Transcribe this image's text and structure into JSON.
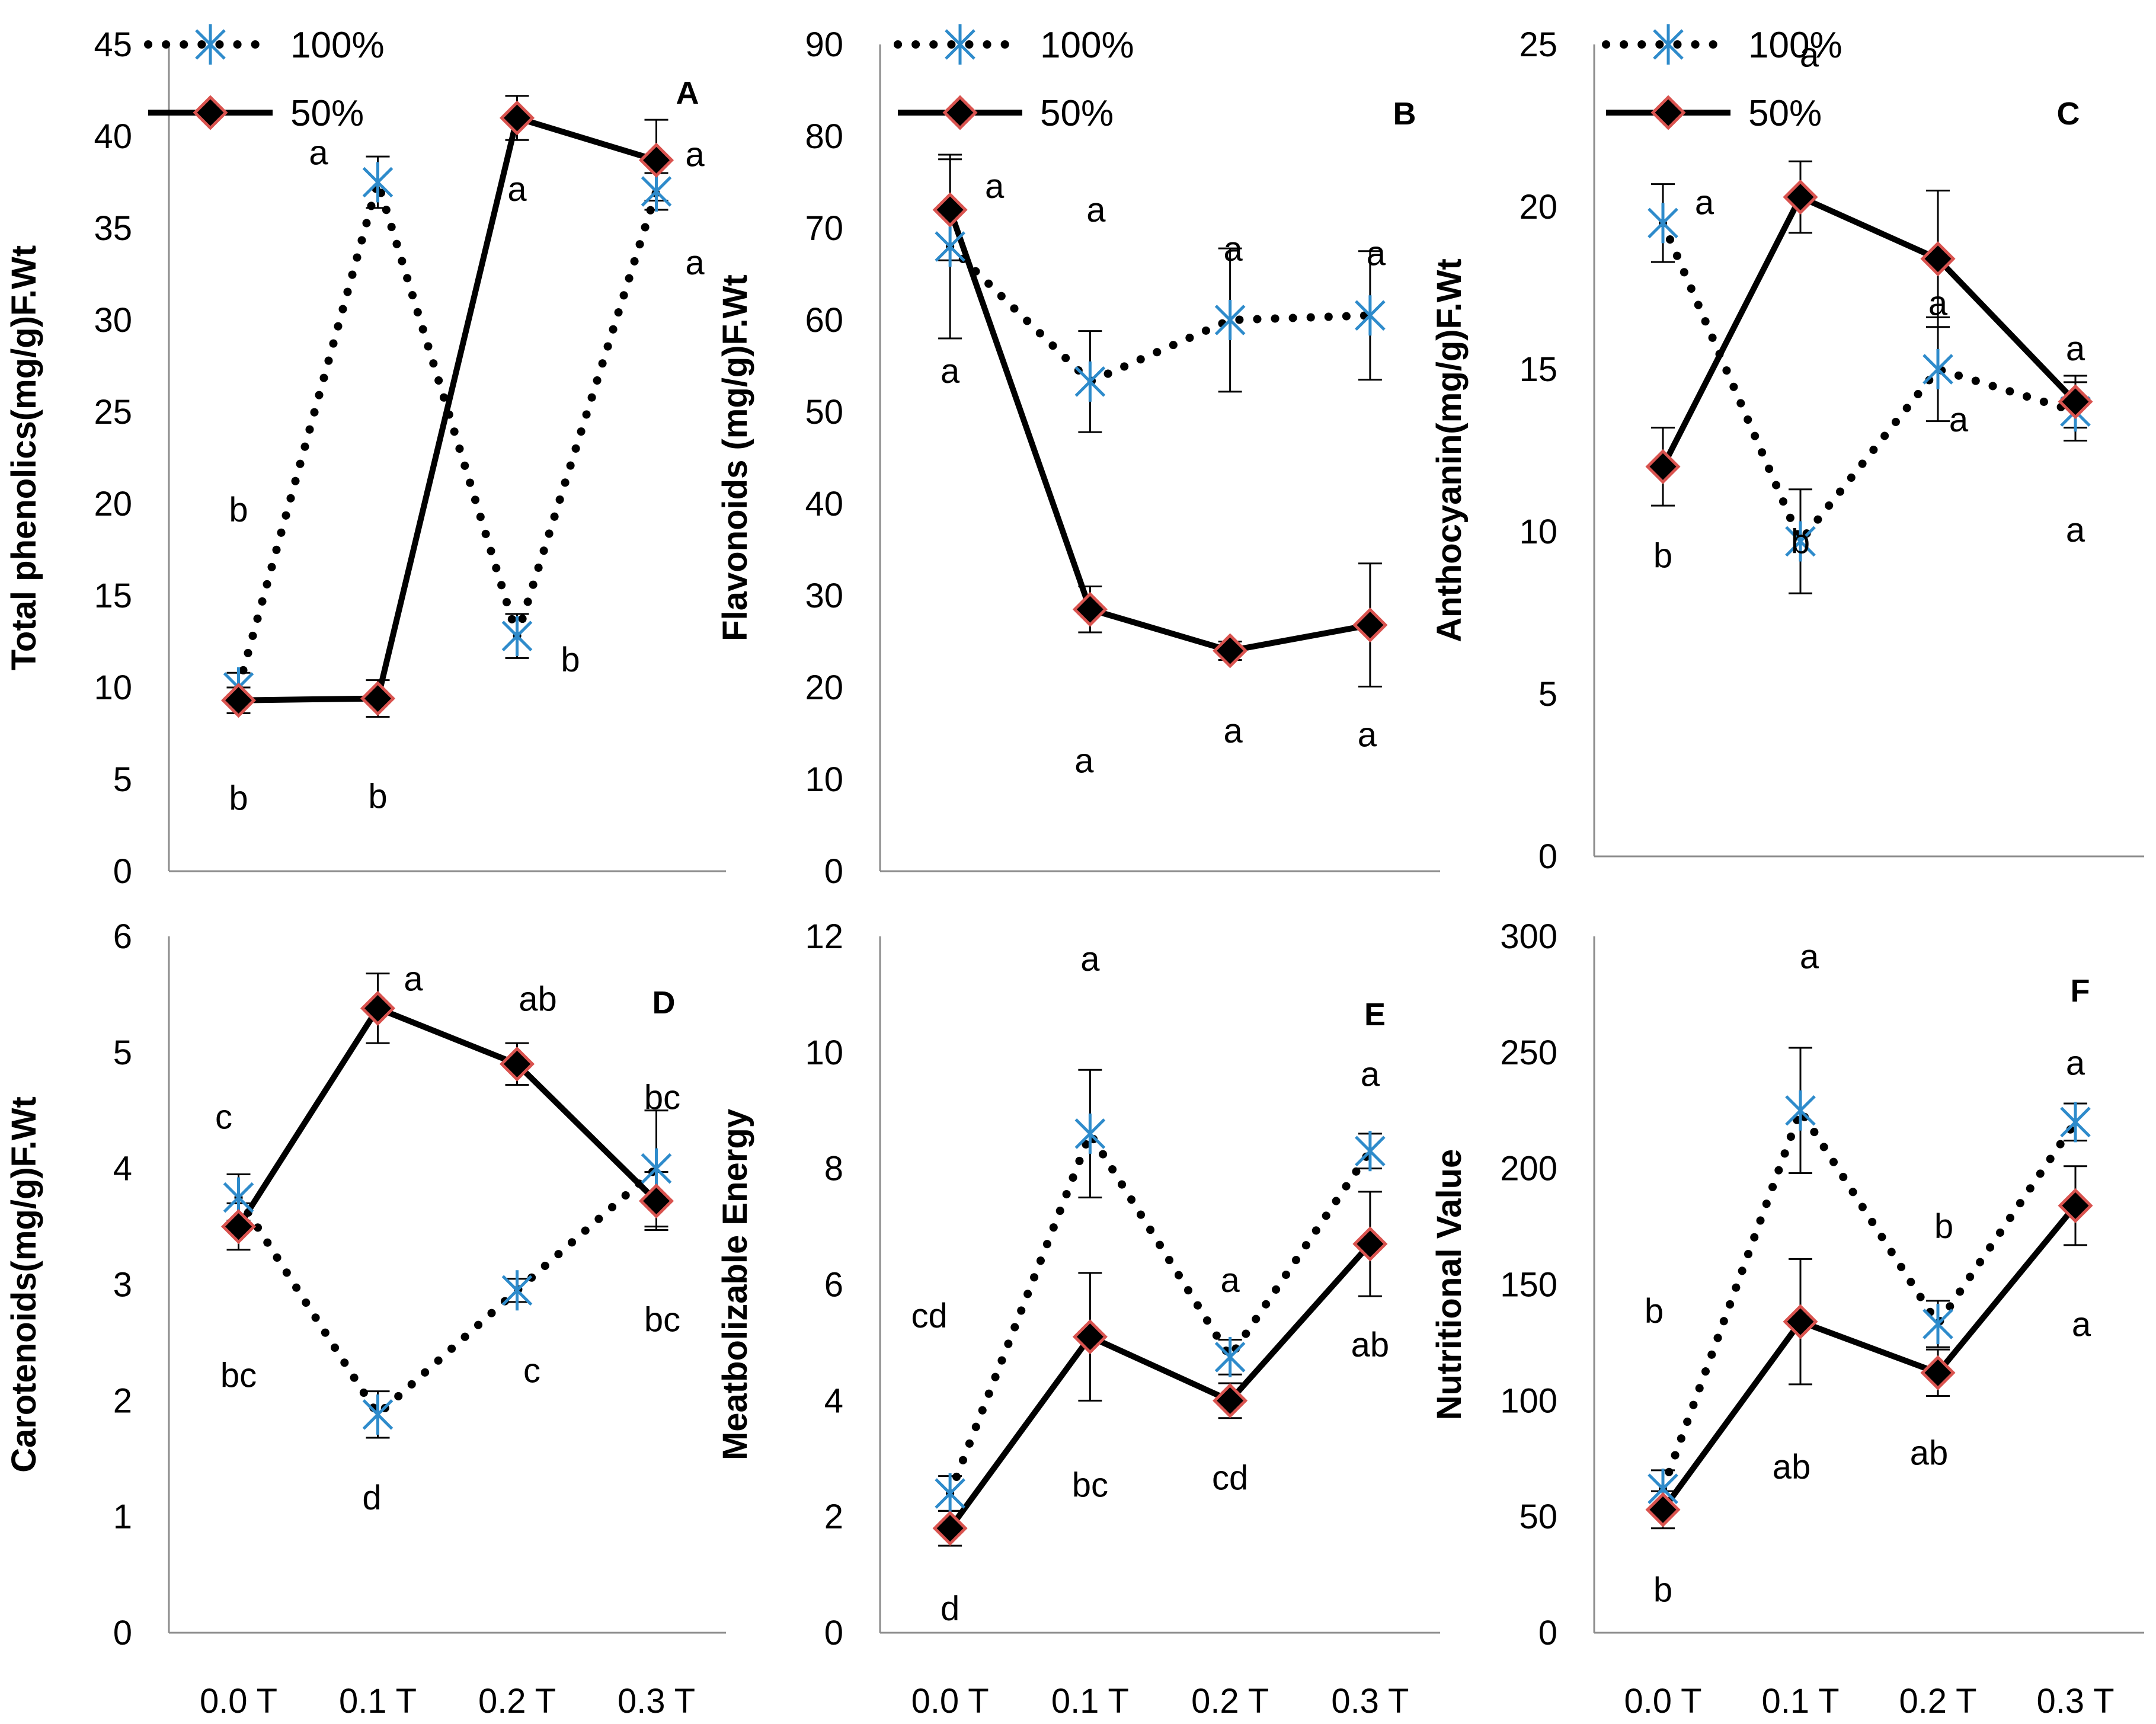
{
  "legend": {
    "series_100": "100%",
    "series_50": "50%"
  },
  "colors": {
    "marker_100": "#2e8bcb",
    "marker_50_fill": "#000000",
    "marker_50_edge": "#d9534f",
    "line": "#000000"
  },
  "chart_data": [
    {
      "type": "line",
      "letter": "A",
      "ylabel": "Total phenolics(mg/g)F.Wt",
      "ylim": [
        0,
        45
      ],
      "yticks": [
        "0",
        "5",
        "10",
        "15",
        "20",
        "25",
        "30",
        "35",
        "40",
        "45"
      ],
      "categories": [
        "0.0 T",
        "0.1 T",
        "0.2 T",
        "0.3 T"
      ],
      "show_xticks": false,
      "legend": true,
      "series": [
        {
          "name": "100%",
          "values": [
            10,
            37.5,
            12.8,
            37
          ],
          "errors": [
            0.8,
            1.4,
            1.2,
            1.0
          ]
        },
        {
          "name": "50%",
          "values": [
            9.3,
            9.4,
            41,
            38.7
          ],
          "errors": [
            0.7,
            1.0,
            1.2,
            2.2
          ]
        }
      ],
      "sig_labels": {
        "100%": [
          "b",
          "a",
          "b",
          "a"
        ],
        "50%": [
          "b",
          "b",
          "a",
          "a"
        ]
      }
    },
    {
      "type": "line",
      "letter": "B",
      "ylabel": "Flavonoids (mg/g)F.Wt",
      "ylim": [
        0,
        90
      ],
      "yticks": [
        "0",
        "10",
        "20",
        "30",
        "40",
        "50",
        "60",
        "70",
        "80",
        "90"
      ],
      "categories": [
        "0.0 T",
        "0.1 T",
        "0.2 T",
        "0.3 T"
      ],
      "show_xticks": false,
      "legend": true,
      "series": [
        {
          "name": "100%",
          "values": [
            68,
            53.3,
            60,
            60.5
          ],
          "errors": [
            10,
            5.5,
            7.8,
            7
          ]
        },
        {
          "name": "50%",
          "values": [
            72,
            28.5,
            24,
            26.8
          ],
          "errors": [
            5.5,
            2.5,
            1,
            6.7
          ]
        }
      ],
      "sig_labels": {
        "100%": [
          "a",
          "a",
          "a",
          "a"
        ],
        "50%": [
          "a",
          "a",
          "a",
          "a"
        ]
      }
    },
    {
      "type": "line",
      "letter": "C",
      "ylabel": "Anthocyanin(mg/g)F.Wt",
      "ylim": [
        0,
        25
      ],
      "yticks": [
        "0",
        "5",
        "10",
        "15",
        "20",
        "25"
      ],
      "categories": [
        "0.0 T",
        "0.1 T",
        "0.2 T",
        "0.3 T"
      ],
      "show_xticks": false,
      "legend": true,
      "series": [
        {
          "name": "100%",
          "values": [
            19.5,
            9.7,
            15,
            13.7
          ],
          "errors": [
            1.2,
            1.6,
            1.6,
            0.9
          ]
        },
        {
          "name": "50%",
          "values": [
            12,
            20.3,
            18.4,
            14
          ],
          "errors": [
            1.2,
            1.1,
            2.1,
            0.8
          ]
        }
      ],
      "sig_labels": {
        "100%": [
          "a",
          "b",
          "a",
          "a"
        ],
        "50%": [
          "b",
          "a",
          "a",
          "a"
        ]
      }
    },
    {
      "type": "line",
      "letter": "D",
      "ylabel": "Carotenoids(mg/g)F.Wt",
      "ylim": [
        0,
        6
      ],
      "yticks": [
        "0",
        "1",
        "2",
        "3",
        "4",
        "5",
        "6"
      ],
      "categories": [
        "0.0 T",
        "0.1 T",
        "0.2 T",
        "0.3 T"
      ],
      "show_xticks": true,
      "legend": false,
      "series": [
        {
          "name": "100%",
          "values": [
            3.75,
            1.88,
            2.95,
            4.0
          ],
          "errors": [
            0.2,
            0.2,
            0.1,
            0.5
          ]
        },
        {
          "name": "50%",
          "values": [
            3.5,
            5.38,
            4.9,
            3.72
          ],
          "errors": [
            0.2,
            0.3,
            0.18,
            0.25
          ]
        }
      ],
      "sig_labels": {
        "100%": [
          "bc",
          "d",
          "c",
          "bc"
        ],
        "50%": [
          "c",
          "a",
          "ab",
          "bc"
        ]
      }
    },
    {
      "type": "line",
      "letter": "E",
      "ylabel": "Meatbolizable Energy",
      "ylim": [
        0,
        12
      ],
      "yticks": [
        "0",
        "2",
        "4",
        "6",
        "8",
        "10",
        "12"
      ],
      "categories": [
        "0.0 T",
        "0.1 T",
        "0.2 T",
        "0.3 T"
      ],
      "show_xticks": true,
      "legend": false,
      "series": [
        {
          "name": "100%",
          "values": [
            2.4,
            8.6,
            4.75,
            8.3
          ],
          "errors": [
            0.3,
            1.1,
            0.3,
            0.3
          ]
        },
        {
          "name": "50%",
          "values": [
            1.8,
            5.1,
            4.0,
            6.7
          ],
          "errors": [
            0.3,
            1.1,
            0.3,
            0.9
          ]
        }
      ],
      "sig_labels": {
        "100%": [
          "cd",
          "a",
          "a",
          "a"
        ],
        "50%": [
          "d",
          "bc",
          "cd",
          "ab"
        ]
      }
    },
    {
      "type": "line",
      "letter": "F",
      "ylabel": "Nutritional Value",
      "ylim": [
        0,
        300
      ],
      "yticks": [
        "0",
        "50",
        "100",
        "150",
        "200",
        "250",
        "300"
      ],
      "categories": [
        "0.0 T",
        "0.1 T",
        "0.2 T",
        "0.3 T"
      ],
      "show_xticks": true,
      "legend": false,
      "series": [
        {
          "name": "100%",
          "values": [
            62,
            225,
            133,
            220
          ],
          "errors": [
            8,
            27,
            10,
            8
          ]
        },
        {
          "name": "50%",
          "values": [
            53,
            134,
            112,
            184
          ],
          "errors": [
            8,
            27,
            10,
            17
          ]
        }
      ],
      "sig_labels": {
        "100%": [
          "b",
          "a",
          "b",
          "a"
        ],
        "50%": [
          "b",
          "ab",
          "ab",
          "a"
        ]
      }
    }
  ]
}
